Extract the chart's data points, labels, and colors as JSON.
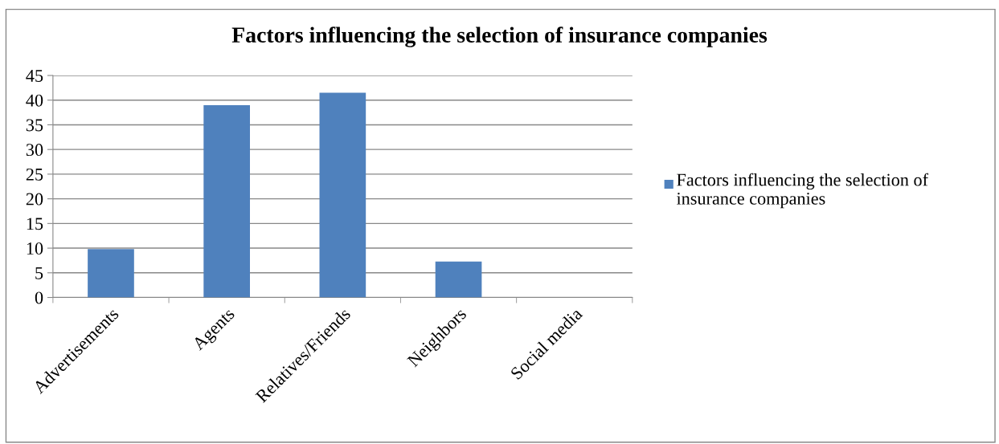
{
  "chart_data": {
    "type": "bar",
    "title": "Factors influencing the selection of insurance companies",
    "categories": [
      "Advertisements",
      "Agents",
      "Relatives/Friends",
      "Neighbors",
      "Social media"
    ],
    "series": [
      {
        "name": "Factors influencing the selection of insurance companies",
        "color": "#4f81bd",
        "values": [
          9.8,
          39,
          41.5,
          7.3,
          0
        ]
      }
    ],
    "ylim": [
      0,
      45
    ],
    "yticks": [
      0,
      5,
      10,
      15,
      20,
      25,
      30,
      35,
      40,
      45
    ],
    "grid": "y",
    "legend": "right"
  }
}
